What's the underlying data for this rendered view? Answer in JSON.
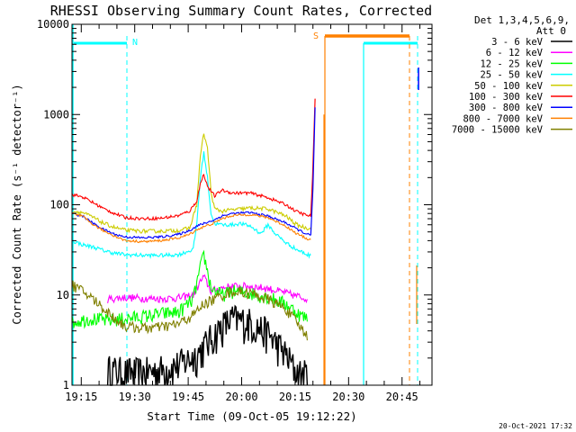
{
  "chart_data": {
    "type": "line",
    "title": "RHESSI Observing Summary Count Rates, Corrected",
    "xlabel": "Start Time (09-Oct-05 19:12:22)",
    "ylabel": "Corrected Count Rate (s⁻¹ detector⁻¹)",
    "yscale": "log",
    "ylim": [
      1,
      10000
    ],
    "xlim_minutes": [
      0,
      41
    ],
    "xticks": [
      {
        "m": 2.6,
        "label": "19:15"
      },
      {
        "m": 17.6,
        "label": "19:30"
      },
      {
        "m": 32.6,
        "label": "19:45"
      },
      {
        "m": 47.6,
        "label": "20:00"
      },
      {
        "m": 62.6,
        "label": "20:15"
      },
      {
        "m": 77.6,
        "label": "20:30"
      },
      {
        "m": 92.6,
        "label": "20:45"
      }
    ],
    "x_axis_max_minutes": 101,
    "yticks": [
      {
        "v": 1,
        "label": "1"
      },
      {
        "v": 10,
        "label": "10"
      },
      {
        "v": 100,
        "label": "100"
      },
      {
        "v": 1000,
        "label": "1000"
      },
      {
        "v": 10000,
        "label": "10000"
      }
    ],
    "legend": {
      "header": [
        "Det 1,3,4,5,6,9,",
        "Att 0"
      ],
      "placement": "right"
    },
    "series": [
      {
        "name": "3 - 6 keV",
        "color": "#000000",
        "x": [
          10,
          15,
          20,
          25,
          30,
          35,
          38,
          42,
          45,
          50,
          55,
          60,
          63,
          66
        ],
        "y": [
          1.5,
          1.4,
          1.4,
          1.5,
          1.7,
          2.2,
          3.0,
          4.5,
          5.5,
          5.0,
          3.8,
          2.2,
          1.4,
          1.3
        ]
      },
      {
        "name": "6 - 12 keV",
        "color": "#ff00ff",
        "x": [
          10,
          15,
          20,
          25,
          30,
          34,
          36,
          37,
          39,
          42,
          45,
          50,
          55,
          60,
          64,
          66
        ],
        "y": [
          9,
          9.4,
          9.2,
          9.1,
          9.3,
          10,
          14,
          16,
          11,
          12,
          12.5,
          12.5,
          11.8,
          10.5,
          9.5,
          9.2
        ]
      },
      {
        "name": "12 - 25 keV",
        "color": "#00ff00",
        "x": [
          0,
          5,
          10,
          15,
          20,
          25,
          30,
          34,
          36,
          37,
          39,
          42,
          45,
          50,
          55,
          60,
          64,
          66
        ],
        "y": [
          5,
          5.5,
          5.2,
          5.5,
          5.8,
          6.2,
          6.5,
          9,
          20,
          28,
          12,
          10,
          11,
          10.5,
          9.5,
          8,
          6,
          5.5
        ]
      },
      {
        "name": "25 - 50 keV",
        "color": "#00ffff",
        "x": [
          0,
          3,
          6,
          9,
          12,
          15,
          20,
          25,
          30,
          34,
          35,
          36,
          37,
          38,
          39,
          40,
          42,
          45,
          47,
          50,
          53,
          55,
          57,
          60,
          63,
          66,
          67
        ],
        "y": [
          40,
          36,
          34,
          31,
          29,
          28,
          27.5,
          27.5,
          28,
          32,
          60,
          200,
          380,
          200,
          80,
          62,
          60,
          60,
          62,
          58,
          48,
          60,
          48,
          38,
          32,
          28,
          27
        ]
      },
      {
        "name": "50 - 100 keV",
        "color": "#cccc00",
        "x": [
          0,
          3,
          6,
          9,
          12,
          15,
          20,
          25,
          30,
          33,
          35,
          36,
          37,
          38,
          39,
          40,
          42,
          45,
          50,
          55,
          60,
          63,
          66,
          67
        ],
        "y": [
          85,
          82,
          72,
          62,
          56,
          52,
          51,
          51,
          52,
          55,
          100,
          350,
          620,
          420,
          140,
          90,
          85,
          88,
          92,
          90,
          75,
          60,
          55,
          56
        ]
      },
      {
        "name": "100 - 300 keV",
        "color": "#ff0000",
        "x": [
          0,
          3,
          6,
          9,
          12,
          15,
          20,
          25,
          30,
          33,
          35,
          36,
          37,
          38,
          40,
          42,
          45,
          50,
          55,
          60,
          63,
          66,
          67
        ],
        "y": [
          130,
          122,
          105,
          90,
          80,
          72,
          70,
          71,
          76,
          85,
          110,
          170,
          220,
          160,
          125,
          145,
          135,
          135,
          120,
          100,
          84,
          76,
          75
        ]
      },
      {
        "name": "300 - 800 keV",
        "color": "#0000ff",
        "x": [
          0,
          3,
          6,
          9,
          12,
          15,
          20,
          25,
          30,
          33,
          35,
          37,
          40,
          42,
          45,
          50,
          55,
          60,
          63,
          66,
          67
        ],
        "y": [
          80,
          75,
          62,
          53,
          47,
          44,
          43,
          44,
          47,
          52,
          58,
          62,
          68,
          75,
          80,
          82,
          75,
          63,
          54,
          47,
          46
        ]
      },
      {
        "name": "800 - 7000 keV",
        "color": "#ff8000",
        "x": [
          0,
          3,
          6,
          9,
          12,
          15,
          20,
          25,
          30,
          33,
          35,
          37,
          40,
          42,
          45,
          50,
          55,
          60,
          63,
          66,
          67
        ],
        "y": [
          80,
          74,
          60,
          51,
          45,
          40,
          39,
          40,
          43,
          47,
          53,
          57,
          63,
          70,
          76,
          78,
          72,
          58,
          48,
          42,
          41
        ]
      },
      {
        "name": "7000 - 15000 keV",
        "color": "#808000",
        "x": [
          0,
          3,
          6,
          9,
          12,
          15,
          20,
          25,
          30,
          34,
          37,
          40,
          42,
          45,
          50,
          55,
          60,
          63,
          66
        ],
        "y": [
          13,
          11,
          9,
          7,
          5.5,
          4.5,
          4.3,
          4.4,
          4.8,
          6,
          8,
          9,
          10,
          11,
          10.5,
          9,
          7,
          5,
          3.5
        ]
      }
    ],
    "annotations": [
      {
        "text": "N",
        "color": "#00ffff"
      },
      {
        "text": "S",
        "color": "#ff8000"
      }
    ],
    "footer_date": "20-Oct-2021 17:32"
  }
}
